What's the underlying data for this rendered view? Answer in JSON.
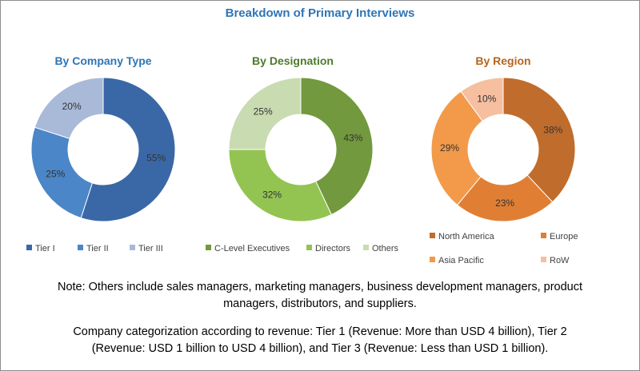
{
  "title": "Breakdown of Primary Interviews",
  "chart_data": [
    {
      "type": "pie",
      "donut": true,
      "title": "By Company Type",
      "title_color": "#2e75b6",
      "categories": [
        "Tier I",
        "Tier II",
        "Tier III"
      ],
      "values": [
        55,
        25,
        20
      ],
      "labels": [
        "55%",
        "25%",
        "20%"
      ],
      "colors": [
        "#3a68a6",
        "#4a86c8",
        "#a9b9d8"
      ],
      "legend": "bottom"
    },
    {
      "type": "pie",
      "donut": true,
      "title": "By Designation",
      "title_color": "#4d7a2a",
      "categories": [
        "C-Level Executives",
        "Directors",
        "Others"
      ],
      "values": [
        43,
        32,
        25
      ],
      "labels": [
        "43%",
        "32%",
        "25%"
      ],
      "colors": [
        "#72993e",
        "#93c452",
        "#c9dbb1"
      ],
      "legend": "bottom"
    },
    {
      "type": "pie",
      "donut": true,
      "title": "By Region",
      "title_color": "#b5651d",
      "categories": [
        "North America",
        "Europe",
        "Asia Pacific",
        "RoW"
      ],
      "values": [
        38,
        23,
        29,
        10
      ],
      "labels": [
        "38%",
        "23%",
        "29%",
        "10%"
      ],
      "colors": [
        "#c06c2c",
        "#e07f34",
        "#f29a4a",
        "#f5bfa0"
      ],
      "legend": "bottom"
    }
  ],
  "notes": {
    "line1": "Note: Others include sales managers, marketing managers, business development managers, product",
    "line2": "managers, distributors, and suppliers.",
    "line3": "Company categorization according to revenue: Tier 1 (Revenue: More than USD 4 billion), Tier 2",
    "line4": "(Revenue: USD 1 billion to USD 4 billion), and Tier 3 (Revenue: Less than USD 1 billion)."
  }
}
